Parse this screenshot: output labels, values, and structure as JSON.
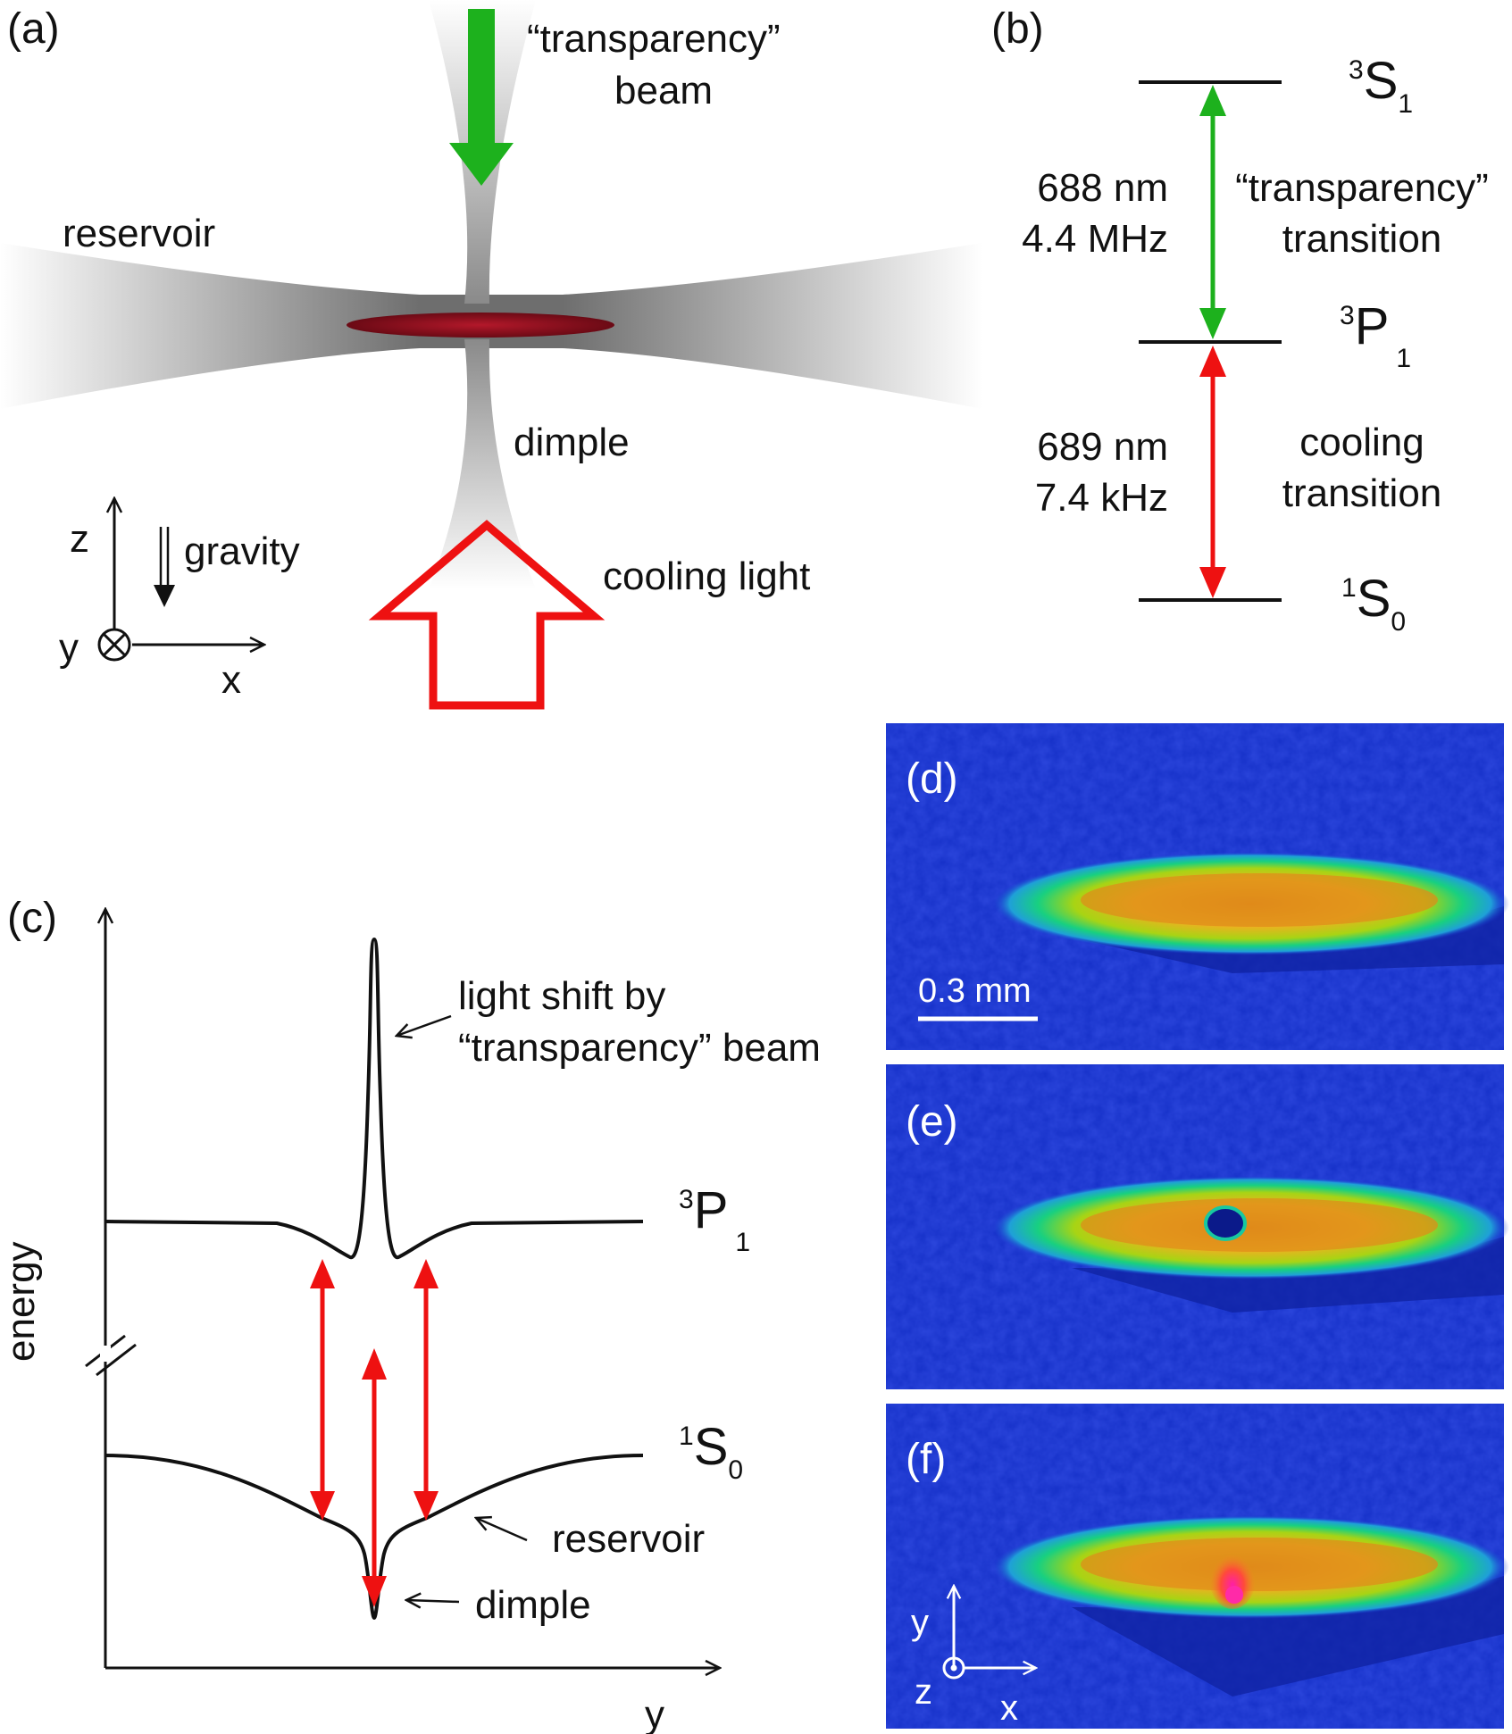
{
  "panel_a": {
    "panel_label": "(a)",
    "transparency_beam_line1": "“transparency”",
    "transparency_beam_line2": "beam",
    "reservoir": "reservoir",
    "dimple": "dimple",
    "cooling_light": "cooling light",
    "gravity": "gravity",
    "axis_z": "z",
    "axis_y": "y",
    "axis_x": "x",
    "colors": {
      "transparency_arrow": "#1db11d",
      "cooling_arrow": "#ee1111",
      "atom_cloud": "#8a0f1c"
    }
  },
  "panel_b": {
    "panel_label": "(b)",
    "upper_state": {
      "letter": "S",
      "sup": "3",
      "sub": "1"
    },
    "middle_state": {
      "letter": "P",
      "sup": "3",
      "sub": "1"
    },
    "lower_state": {
      "letter": "S",
      "sup": "1",
      "sub": "0"
    },
    "upper_wavelength": "688 nm",
    "upper_linewidth": "4.4 MHz",
    "upper_transition_line1": "“transparency”",
    "upper_transition_line2": "transition",
    "lower_wavelength": "689 nm",
    "lower_linewidth": "7.4 kHz",
    "lower_transition_line1": "cooling",
    "lower_transition_line2": "transition"
  },
  "panel_c": {
    "panel_label": "(c)",
    "ylabel": "energy",
    "xlabel": "y",
    "light_shift_line1": "light shift by",
    "light_shift_line2": "“transparency” beam",
    "upper_curve_state": {
      "letter": "P",
      "sup": "3",
      "sub": "1"
    },
    "lower_curve_state": {
      "letter": "S",
      "sup": "1",
      "sub": "0"
    },
    "reservoir": "reservoir",
    "dimple": "dimple"
  },
  "panel_d": {
    "panel_label": "(d)",
    "scale_bar": "0.3 mm"
  },
  "panel_e": {
    "panel_label": "(e)"
  },
  "panel_f": {
    "panel_label": "(f)",
    "axis_y": "y",
    "axis_z": "z",
    "axis_x": "x"
  }
}
